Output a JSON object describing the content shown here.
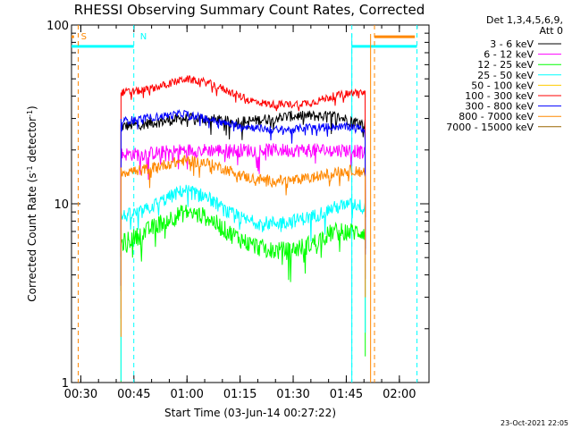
{
  "chart_data": {
    "type": "line",
    "title": "RHESSI Observing Summary Count Rates, Corrected",
    "ylabel_main": "Corrected Count Rate (s",
    "ylabel_exp1": "-1",
    "ylabel_mid": " detector",
    "ylabel_exp2": "-1",
    "ylabel_end": ")",
    "xlabel": "Start Time (03-Jun-14 00:27:22)",
    "x_unit": "minutes after 00:27:22",
    "xlim": [
      0,
      101
    ],
    "ylim": [
      1,
      100
    ],
    "yscale": "log",
    "x_ticks": [
      {
        "value": 2.63,
        "label": "00:30"
      },
      {
        "value": 17.63,
        "label": "00:45"
      },
      {
        "value": 32.63,
        "label": "01:00"
      },
      {
        "value": 47.63,
        "label": "01:15"
      },
      {
        "value": 62.63,
        "label": "01:30"
      },
      {
        "value": 77.63,
        "label": "01:45"
      },
      {
        "value": 92.63,
        "label": "02:00"
      }
    ],
    "y_ticks": [
      {
        "value": 1,
        "label": "1"
      },
      {
        "value": 10,
        "label": "10"
      },
      {
        "value": 100,
        "label": "100"
      }
    ],
    "legend_header": [
      "Det 1,3,4,5,6,9,",
      "Att 0"
    ],
    "series": [
      {
        "name": "3 - 6 keV",
        "color": "#000000",
        "x": [
          14.0,
          20,
          26,
          32,
          38,
          44,
          50,
          56,
          62,
          68,
          74,
          80,
          83.0
        ],
        "values": [
          27,
          28,
          29,
          30,
          30,
          29,
          29,
          30,
          31,
          31,
          31,
          29,
          28
        ]
      },
      {
        "name": "6 - 12 keV",
        "color": "#ff00ff",
        "x": [
          14.0,
          20,
          26,
          32,
          38,
          44,
          50,
          56,
          62,
          68,
          74,
          80,
          83.0
        ],
        "values": [
          19,
          19,
          19.5,
          20,
          20,
          20,
          20,
          20,
          20,
          20,
          20,
          20,
          19
        ]
      },
      {
        "name": "12 - 25 keV",
        "color": "#00ff00",
        "x": [
          14.0,
          20,
          26,
          32,
          38,
          44,
          50,
          56,
          62,
          68,
          74,
          80,
          83.0
        ],
        "values": [
          6,
          6.8,
          8,
          9,
          8.5,
          7,
          6,
          5.5,
          5.5,
          6,
          7,
          7,
          7
        ]
      },
      {
        "name": "25 - 50 keV",
        "color": "#00ffff",
        "x": [
          14.0,
          20,
          26,
          32,
          38,
          44,
          50,
          56,
          62,
          68,
          74,
          80,
          83.0
        ],
        "values": [
          8.5,
          9,
          10.5,
          12,
          11,
          9,
          8,
          7.8,
          8,
          8.5,
          9.5,
          10,
          9.5
        ]
      },
      {
        "name": "50 - 100 keV",
        "color": "#ffcc00",
        "x": [],
        "values": []
      },
      {
        "name": "100 - 300 keV",
        "color": "#ff0000",
        "x": [
          14.0,
          20,
          26,
          32,
          38,
          44,
          50,
          56,
          62,
          68,
          74,
          80,
          83.0
        ],
        "values": [
          42,
          43,
          46,
          50,
          48,
          43,
          38,
          36,
          36,
          37,
          40,
          42,
          42
        ]
      },
      {
        "name": "300 - 800 keV",
        "color": "#0000ff",
        "x": [
          14.0,
          20,
          26,
          32,
          38,
          44,
          50,
          56,
          62,
          68,
          74,
          80,
          83.0
        ],
        "values": [
          29,
          30,
          31,
          32,
          30,
          28,
          27,
          26,
          26,
          27,
          27,
          27,
          26
        ]
      },
      {
        "name": "800 - 7000 keV",
        "color": "#ff8800",
        "x": [
          14.0,
          20,
          26,
          32,
          38,
          44,
          50,
          56,
          62,
          68,
          74,
          80,
          83.0
        ],
        "values": [
          15,
          15.5,
          16.5,
          17.5,
          17,
          15.5,
          14,
          13.5,
          13.5,
          14,
          15,
          15.5,
          15
        ]
      },
      {
        "name": "7000 - 15000 keV",
        "color": "#996600",
        "x": [],
        "values": []
      }
    ],
    "annotations": [
      {
        "label": "S",
        "color": "#ff8800",
        "x": 0.9
      },
      {
        "label": "N",
        "color": "#00ffff",
        "x": 17.6
      }
    ],
    "vlines": [
      {
        "x": 1.9,
        "color": "#ff8800"
      },
      {
        "x": 17.6,
        "color": "#00ffff"
      },
      {
        "x": 79.2,
        "color": "#00ffff"
      },
      {
        "x": 85.6,
        "color": "#ff8800"
      },
      {
        "x": 97.6,
        "color": "#00ffff"
      }
    ],
    "bars": [
      {
        "x_start": 0,
        "x_end": 17.6,
        "value": 76,
        "color": "#00ffff"
      },
      {
        "x_start": 79.2,
        "x_end": 97.6,
        "value": 76,
        "color": "#00ffff"
      },
      {
        "x_start": 85.6,
        "x_end": 97.0,
        "value": 86,
        "color": "#ff8800"
      },
      {
        "x_start": 0,
        "x_end": 0.7,
        "value": 86,
        "color": "#ff8800"
      }
    ],
    "footer": "23-Oct-2021 22:05"
  }
}
